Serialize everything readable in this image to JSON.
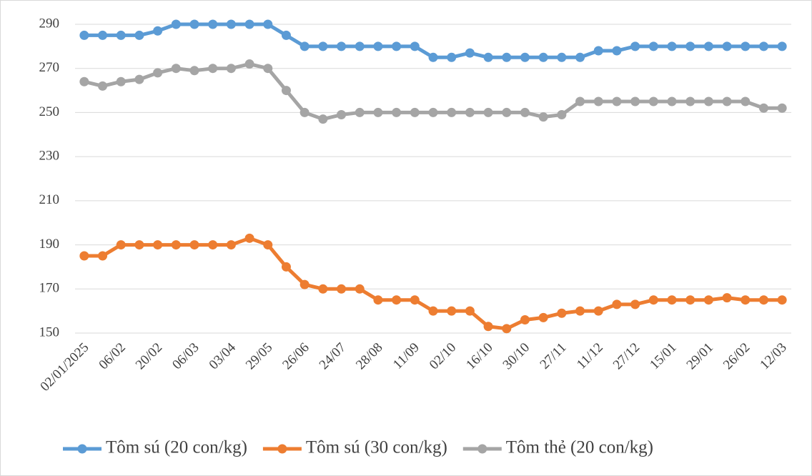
{
  "chart_data": {
    "type": "line",
    "categories": [
      "02/01/2025",
      null,
      "06/02",
      null,
      "20/02",
      null,
      "06/03",
      null,
      "03/04",
      null,
      "29/05",
      null,
      "26/06",
      null,
      "24/07",
      null,
      "28/08",
      null,
      "11/09",
      null,
      "02/10",
      null,
      "16/10",
      null,
      "30/10",
      null,
      "27/11",
      null,
      "11/12",
      null,
      "27/12",
      null,
      "15/01",
      null,
      "29/01",
      null,
      "26/02",
      null,
      "12/03"
    ],
    "series": [
      {
        "name": "Tôm sú (20 con/kg)",
        "color": "#5b9bd5",
        "values": [
          285,
          285,
          285,
          285,
          287,
          290,
          290,
          290,
          290,
          290,
          290,
          285,
          280,
          280,
          280,
          280,
          280,
          280,
          280,
          275,
          275,
          277,
          275,
          275,
          275,
          275,
          275,
          275,
          278,
          278,
          280,
          280,
          280,
          280,
          280,
          280,
          280,
          280,
          280
        ]
      },
      {
        "name": "Tôm sú (30 con/kg)",
        "color": "#ed7d31",
        "values": [
          185,
          185,
          190,
          190,
          190,
          190,
          190,
          190,
          190,
          193,
          190,
          180,
          172,
          170,
          170,
          170,
          165,
          165,
          165,
          160,
          160,
          160,
          153,
          152,
          156,
          157,
          159,
          160,
          160,
          163,
          163,
          165,
          165,
          165,
          165,
          166,
          165,
          165,
          165
        ]
      },
      {
        "name": "Tôm thẻ (20 con/kg)",
        "color": "#a5a5a5",
        "values": [
          264,
          262,
          264,
          265,
          268,
          270,
          269,
          270,
          270,
          272,
          270,
          260,
          250,
          247,
          249,
          250,
          250,
          250,
          250,
          250,
          250,
          250,
          250,
          250,
          250,
          248,
          249,
          255,
          255,
          255,
          255,
          255,
          255,
          255,
          255,
          255,
          255,
          252,
          252
        ]
      }
    ],
    "ylim": [
      150,
      290
    ],
    "yticks": [
      150,
      170,
      190,
      210,
      230,
      250,
      270,
      290
    ],
    "grid": true,
    "legend": "bottom"
  }
}
